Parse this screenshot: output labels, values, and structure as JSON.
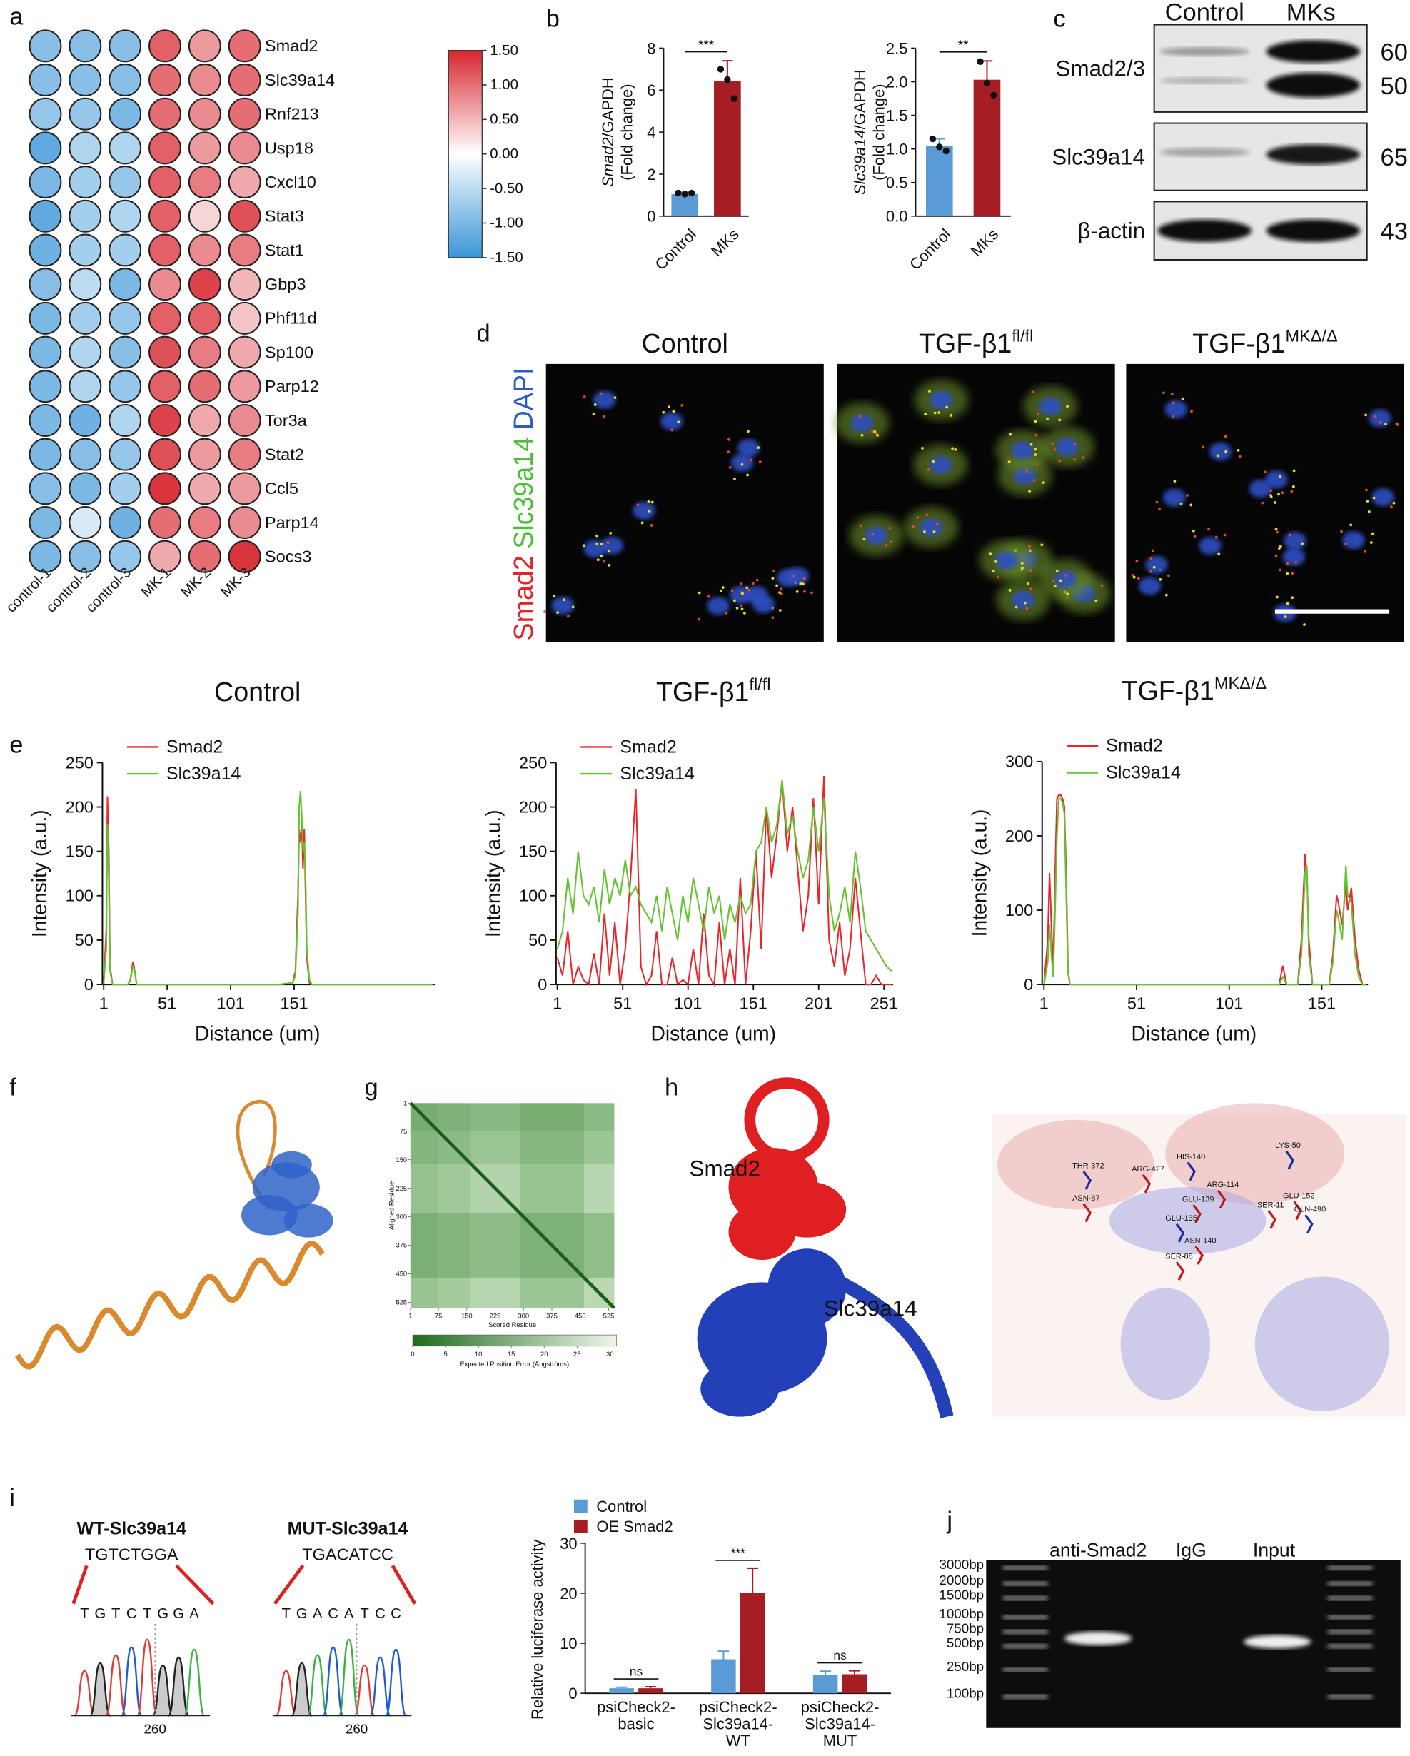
{
  "panel_labels": [
    "a",
    "b",
    "c",
    "d",
    "e",
    "f",
    "g",
    "h",
    "i",
    "j"
  ],
  "chart_data": [
    {
      "type": "heatmap",
      "rows": [
        "Smad2",
        "Slc39a14",
        "Rnf213",
        "Usp18",
        "Cxcl10",
        "Stat3",
        "Stat1",
        "Gbp3",
        "Phf11d",
        "Sp100",
        "Parp12",
        "Tor3a",
        "Stat2",
        "Ccl5",
        "Parp14",
        "Socs3"
      ],
      "columns": [
        "control-1",
        "control-2",
        "control-3",
        "MK-1",
        "MK-2",
        "MK-3"
      ],
      "values": [
        [
          -0.9,
          -0.9,
          -0.9,
          1.1,
          0.7,
          1.0
        ],
        [
          -0.9,
          -0.9,
          -0.9,
          1.0,
          0.8,
          1.0
        ],
        [
          -0.8,
          -0.8,
          -1.0,
          1.0,
          0.8,
          1.0
        ],
        [
          -1.2,
          -0.6,
          -0.6,
          1.1,
          0.7,
          0.8
        ],
        [
          -1.0,
          -0.7,
          -0.8,
          1.1,
          0.9,
          0.6
        ],
        [
          -1.2,
          -0.7,
          -0.6,
          1.1,
          0.3,
          1.2
        ],
        [
          -1.1,
          -0.7,
          -0.7,
          1.1,
          0.8,
          0.9
        ],
        [
          -0.9,
          -0.5,
          -1.0,
          0.8,
          1.3,
          0.5
        ],
        [
          -1.0,
          -0.7,
          -0.8,
          1.1,
          1.1,
          0.4
        ],
        [
          -1.0,
          -0.6,
          -0.9,
          1.2,
          0.9,
          0.6
        ],
        [
          -1.0,
          -0.6,
          -0.8,
          1.1,
          1.0,
          0.7
        ],
        [
          -1.0,
          -1.1,
          -0.6,
          1.3,
          0.6,
          0.8
        ],
        [
          -1.0,
          -0.9,
          -0.8,
          1.2,
          0.7,
          0.9
        ],
        [
          -0.9,
          -1.0,
          -0.7,
          1.4,
          0.6,
          0.7
        ],
        [
          -1.0,
          -0.3,
          -1.1,
          1.0,
          0.9,
          0.8
        ],
        [
          -1.0,
          -0.9,
          -0.8,
          0.6,
          1.0,
          1.4
        ]
      ],
      "clim": [
        -1.5,
        1.5
      ],
      "cticks": [
        {
          "value": 1.5,
          "label": "1.50"
        },
        {
          "value": 1,
          "label": "1.00"
        },
        {
          "value": 0.5,
          "label": "0.50"
        },
        {
          "value": 0,
          "label": "0.00"
        },
        {
          "value": -0.5,
          "label": "-0.50"
        },
        {
          "value": -1,
          "label": "-1.00"
        },
        {
          "value": -1.5,
          "label": "-1.50"
        }
      ],
      "colors": [
        "#3a95d7",
        "#ffffff",
        "#d7262e"
      ]
    },
    {
      "type": "bar",
      "y_label_italic": "Smad2",
      "y_label": "/GAPDH",
      "y_label_2": "(Fold change)",
      "categories": [
        "Control",
        "MKs"
      ],
      "values": [
        1.05,
        6.45
      ],
      "errors": [
        0.08,
        0.95
      ],
      "points": [
        [
          1.1,
          1.05,
          1.1
        ],
        [
          7.0,
          6.5,
          5.6
        ]
      ],
      "colors": [
        "#5b9bd5",
        "#a51e24"
      ],
      "ylim": [
        0,
        8
      ],
      "yticks": [
        0,
        2,
        4,
        6,
        8
      ],
      "annotation": "***"
    },
    {
      "type": "bar",
      "y_label_italic": "Slc39a14",
      "y_label": "/GAPDH",
      "y_label_2": "(Fold change)",
      "categories": [
        "Control",
        "MKs"
      ],
      "values": [
        1.05,
        2.03
      ],
      "errors": [
        0.1,
        0.28
      ],
      "points": [
        [
          1.15,
          1.03,
          0.97
        ],
        [
          2.3,
          1.98,
          1.8
        ]
      ],
      "colors": [
        "#5b9bd5",
        "#a51e24"
      ],
      "ylim": [
        0,
        2.5
      ],
      "yticks": [
        {
          "value": 0,
          "label": "0.0"
        },
        0.5,
        {
          "value": 1,
          "label": "1.0"
        },
        1.5,
        {
          "value": 2,
          "label": "2.0"
        },
        2.5
      ],
      "annotation": "**"
    },
    {
      "type": "line",
      "title": "Control",
      "x": [
        1,
        3,
        4,
        5,
        6,
        8,
        20,
        22,
        24,
        25,
        27,
        30,
        60,
        100,
        140,
        150,
        152,
        154,
        155,
        156,
        157,
        158,
        159,
        160,
        161,
        163,
        165,
        180,
        260
      ],
      "series": [
        {
          "name": "Smad2",
          "color": "#e8262b",
          "values": [
            0,
            60,
            212,
            150,
            20,
            0,
            0,
            5,
            25,
            20,
            0,
            0,
            0,
            0,
            0,
            2,
            15,
            100,
            175,
            160,
            180,
            130,
            175,
            100,
            30,
            2,
            0,
            0,
            0
          ]
        },
        {
          "name": "Slc39a14",
          "color": "#62c431",
          "values": [
            0,
            40,
            180,
            120,
            15,
            0,
            0,
            4,
            20,
            18,
            0,
            0,
            0,
            0,
            0,
            2,
            10,
            80,
            200,
            218,
            190,
            150,
            160,
            120,
            40,
            5,
            0,
            0,
            0
          ]
        }
      ],
      "xlim": [
        0,
        262
      ],
      "ylim": [
        0,
        250
      ],
      "xticks": [
        1,
        51,
        101,
        151
      ],
      "yticks": [
        0,
        50,
        100,
        150,
        200,
        250
      ],
      "x_label": "Distance (um)",
      "y_label": "Intensity (a.u.)"
    },
    {
      "type": "line",
      "title": "TGF-β1",
      "title_superscript": "fl/fl",
      "x": [
        1,
        5,
        9,
        13,
        17,
        21,
        25,
        29,
        33,
        37,
        41,
        45,
        49,
        53,
        57,
        61,
        65,
        69,
        73,
        77,
        81,
        85,
        89,
        93,
        97,
        101,
        105,
        109,
        113,
        117,
        121,
        125,
        129,
        133,
        137,
        141,
        145,
        149,
        153,
        157,
        161,
        165,
        169,
        173,
        177,
        181,
        185,
        189,
        193,
        197,
        201,
        205,
        209,
        213,
        217,
        221,
        225,
        229,
        233,
        237,
        241,
        245,
        249,
        253,
        257
      ],
      "series": [
        {
          "name": "Smad2",
          "color": "#e8262b",
          "values": [
            30,
            10,
            60,
            0,
            20,
            5,
            0,
            35,
            0,
            80,
            10,
            70,
            0,
            40,
            120,
            220,
            20,
            0,
            10,
            60,
            0,
            0,
            30,
            0,
            5,
            0,
            40,
            0,
            80,
            10,
            0,
            70,
            0,
            40,
            0,
            120,
            0,
            60,
            150,
            40,
            200,
            120,
            170,
            230,
            150,
            200,
            130,
            60,
            100,
            210,
            90,
            235,
            50,
            20,
            70,
            10,
            40,
            120,
            60,
            0,
            0,
            10,
            0,
            0,
            0
          ]
        },
        {
          "name": "Slc39a14",
          "color": "#62c431",
          "values": [
            40,
            60,
            120,
            80,
            150,
            100,
            90,
            110,
            70,
            130,
            90,
            120,
            100,
            140,
            100,
            110,
            90,
            80,
            70,
            100,
            60,
            110,
            80,
            50,
            100,
            70,
            120,
            90,
            60,
            110,
            80,
            100,
            50,
            90,
            70,
            100,
            80,
            90,
            150,
            160,
            200,
            160,
            180,
            230,
            170,
            190,
            150,
            120,
            140,
            200,
            150,
            210,
            100,
            60,
            80,
            110,
            70,
            150,
            110,
            60,
            50,
            40,
            30,
            20,
            15
          ]
        }
      ],
      "xlim": [
        0,
        258
      ],
      "ylim": [
        0,
        250
      ],
      "xticks": [
        1,
        51,
        101,
        151,
        201,
        251
      ],
      "yticks": [
        0,
        50,
        100,
        150,
        200,
        250
      ],
      "x_label": "Distance (um)",
      "y_label": "Intensity (a.u.)"
    },
    {
      "type": "line",
      "title": "TGF-β1",
      "title_superscript": "MKΔ/Δ",
      "x": [
        1,
        3,
        4,
        5,
        6,
        7,
        8,
        9,
        10,
        11,
        12,
        13,
        14,
        15,
        17,
        40,
        100,
        128,
        130,
        132,
        138,
        140,
        142,
        143,
        144,
        146,
        150,
        155,
        157,
        159,
        160,
        162,
        164,
        165,
        167,
        169,
        171,
        173,
        175
      ],
      "series": [
        {
          "name": "Smad2",
          "color": "#e8262b",
          "values": [
            0,
            60,
            150,
            80,
            20,
            150,
            250,
            255,
            255,
            250,
            240,
            150,
            20,
            0,
            0,
            0,
            0,
            0,
            25,
            0,
            0,
            60,
            175,
            150,
            60,
            0,
            0,
            0,
            40,
            120,
            110,
            80,
            135,
            100,
            130,
            60,
            20,
            0,
            0
          ]
        },
        {
          "name": "Slc39a14",
          "color": "#62c431",
          "values": [
            0,
            30,
            80,
            40,
            10,
            100,
            200,
            250,
            250,
            245,
            230,
            120,
            15,
            0,
            0,
            0,
            0,
            0,
            10,
            0,
            0,
            40,
            150,
            160,
            40,
            0,
            0,
            0,
            30,
            100,
            90,
            60,
            160,
            120,
            110,
            40,
            10,
            0,
            0
          ]
        }
      ],
      "xlim": [
        0,
        176
      ],
      "ylim": [
        0,
        300
      ],
      "xticks": [
        1,
        51,
        101,
        151
      ],
      "yticks": [
        0,
        100,
        200,
        300
      ],
      "x_label": "Distance (um)",
      "y_label": "Intensity (a.u.)"
    },
    {
      "type": "pae",
      "xlim": [
        1,
        540
      ],
      "ylim": [
        1,
        540
      ],
      "xticks": [
        1,
        75,
        150,
        225,
        300,
        375,
        450,
        525
      ],
      "yticks": [
        1,
        75,
        150,
        225,
        300,
        375,
        450,
        525
      ],
      "x_label": "Scored Residue",
      "y_label": "Aligned Residue",
      "clim": [
        0,
        31
      ],
      "cticks": [
        0,
        5,
        10,
        15,
        20,
        25,
        30
      ],
      "c_label": "Expected Position Error (Ångströms)"
    },
    {
      "type": "grouped_bar",
      "y_label": "Relative luciferase activity",
      "categories": [
        [
          "psiCheck2-",
          "basic"
        ],
        [
          "psiCheck2-",
          "Slc39a14-",
          "WT"
        ],
        [
          "psiCheck2-",
          "Slc39a14-",
          "MUT"
        ]
      ],
      "series": [
        {
          "name": "Control",
          "color": "#5b9bd5",
          "values": [
            1.0,
            6.8,
            3.6
          ],
          "errors": [
            0.2,
            1.6,
            0.8
          ]
        },
        {
          "name": "OE Smad2",
          "color": "#a51e24",
          "values": [
            1.0,
            20.0,
            3.8
          ],
          "errors": [
            0.3,
            5.0,
            0.7
          ]
        }
      ],
      "ylim": [
        0,
        30
      ],
      "yticks": [
        0,
        10,
        20,
        30
      ],
      "annotations": [
        "ns",
        "***",
        "ns"
      ]
    }
  ],
  "blot": {
    "columns": [
      "Control",
      "MKs"
    ],
    "rows": [
      {
        "label": "Smad2/3",
        "mw": [
          "60",
          "50"
        ]
      },
      {
        "label": "Slc39a14",
        "mw": [
          "65"
        ]
      },
      {
        "label": "β-actin",
        "mw": [
          "43"
        ]
      }
    ]
  },
  "micrographs": {
    "stain": [
      "Smad2",
      "Slc39a14",
      "DAPI"
    ],
    "titles": [
      {
        "text": "Control"
      },
      {
        "text": "TGF-β1",
        "sup": "fl/fl"
      },
      {
        "text": "TGF-β1",
        "sup": "MKΔ/Δ"
      }
    ]
  },
  "structure": {
    "labels": [
      "Smad2",
      "Slc39a14"
    ],
    "residues": [
      "THR-372",
      "ASN-87",
      "ARG-427",
      "HIS-140",
      "ARG-114",
      "GLU-139",
      "GLU-135",
      "ASN-140",
      "SER-88",
      "LYS-50",
      "SER-11",
      "GLU-152",
      "GLN-490"
    ]
  },
  "sequences": [
    {
      "title": "WT-Slc39a14",
      "motif": "TGTCTGGA",
      "bases": [
        "T",
        "G",
        "T",
        "C",
        "T",
        "G",
        "G",
        "A"
      ],
      "position": "260"
    },
    {
      "title": "MUT-Slc39a14",
      "motif": "TGACATCC",
      "bases": [
        "T",
        "G",
        "A",
        "C",
        "A",
        "T",
        "C",
        "C"
      ],
      "position": "260"
    }
  ],
  "gel": {
    "lanes": [
      "anti-Smad2",
      "IgG",
      "Input"
    ],
    "ladder": [
      "3000bp",
      "2000bp",
      "1500bp",
      "1000bp",
      "750bp",
      "500bp",
      "250bp",
      "100bp"
    ]
  }
}
